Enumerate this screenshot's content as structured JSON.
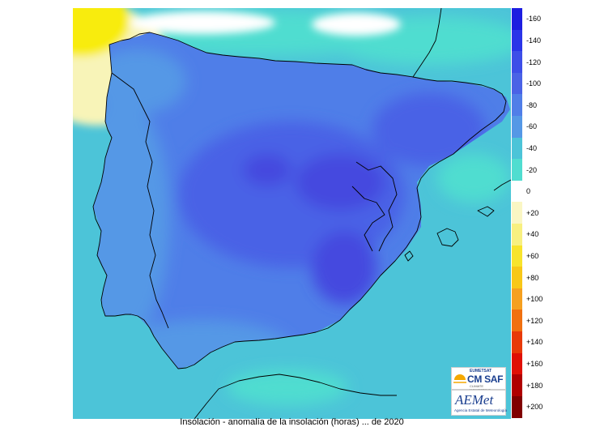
{
  "map": {
    "region": "Iberian Peninsula",
    "colors": {
      "sea_near": "#50ddd0",
      "sea": "#4cc4d8",
      "land_low": "#5598e6",
      "land_mid": "#4f7ee8",
      "land_high": "#4a62e6",
      "land_peak": "#4448df",
      "arctic_yellow": "#f8ec10",
      "arctic_cream": "#f8f4b8",
      "coast": "#000000"
    }
  },
  "legend": {
    "items": [
      {
        "label": "-160",
        "color": "#1d1ee0"
      },
      {
        "label": "-140",
        "color": "#2a35e8"
      },
      {
        "label": "-120",
        "color": "#3d4ee8"
      },
      {
        "label": "-100",
        "color": "#4a62e6"
      },
      {
        "label": "-80",
        "color": "#507ee8"
      },
      {
        "label": "-60",
        "color": "#5598e6"
      },
      {
        "label": "-40",
        "color": "#4cc4d8"
      },
      {
        "label": "-20",
        "color": "#50ddd0"
      },
      {
        "label": "0",
        "color": "#ffffff"
      },
      {
        "label": "+20",
        "color": "#faf6c4"
      },
      {
        "label": "+40",
        "color": "#f8f080"
      },
      {
        "label": "+60",
        "color": "#f8e42c"
      },
      {
        "label": "+80",
        "color": "#f8c818"
      },
      {
        "label": "+100",
        "color": "#f5a020"
      },
      {
        "label": "+120",
        "color": "#f07010"
      },
      {
        "label": "+140",
        "color": "#e83a08"
      },
      {
        "label": "+160",
        "color": "#e01005"
      },
      {
        "label": "+180",
        "color": "#b00000"
      },
      {
        "label": "+200",
        "color": "#800000"
      }
    ]
  },
  "logos": {
    "cmsaf_top": "EUMETSAT",
    "cmsaf_main": "CM SAF",
    "cmsaf_sub": "CLIMATE MONITORING",
    "aemet_main": "AEMet",
    "aemet_sub": "Agencia Estatal de Meteorología"
  },
  "caption": "Insolación - anomalía de la insolación (horas) ... de 2020"
}
